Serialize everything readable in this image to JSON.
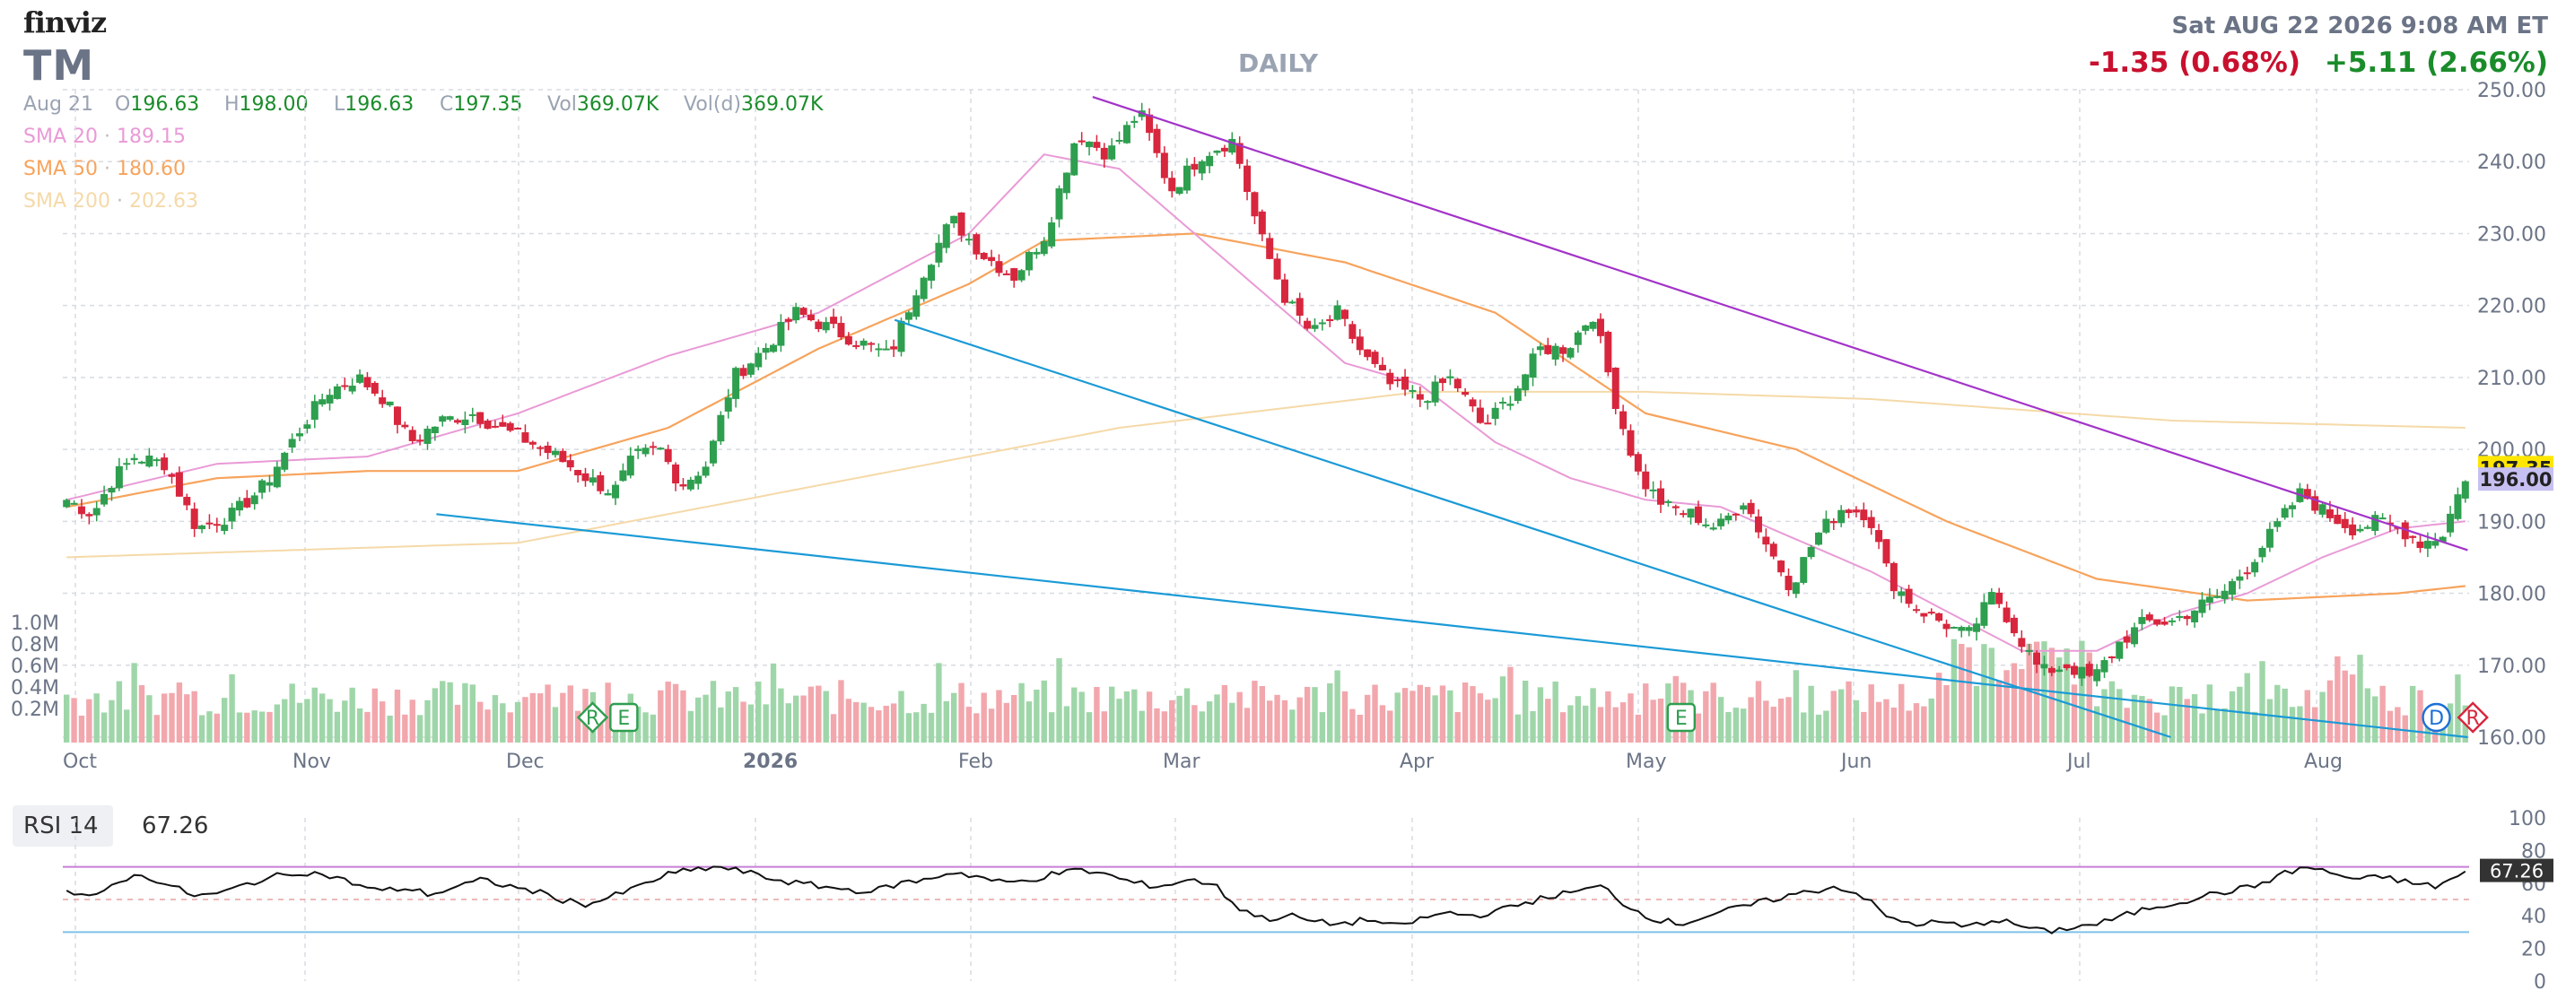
{
  "header": {
    "logo": "finviz",
    "ticker": "TM",
    "timeframe": "DAILY",
    "datetime": "Sat AUG 22 2026 9:08 AM ET",
    "change_day": "-1.35 (0.68%)",
    "change_premarket": "+5.11 (2.66%)"
  },
  "ohlc": {
    "date": "Aug 21",
    "open_label": "O",
    "open": "196.63",
    "high_label": "H",
    "high": "198.00",
    "low_label": "L",
    "low": "196.63",
    "close_label": "C",
    "close": "197.35",
    "vol_label": "Vol",
    "vol": "369.07K",
    "vold_label": "Vol(d)",
    "vold": "369.07K"
  },
  "indicators": [
    {
      "label": "SMA 20",
      "value": "189.15",
      "color": "#e99ad6"
    },
    {
      "label": "SMA 50",
      "value": "180.60",
      "color": "#f7a35c"
    },
    {
      "label": "SMA 200",
      "value": "202.63",
      "color": "#f5d9a8"
    }
  ],
  "rsi": {
    "label": "RSI 14",
    "value": "67.26",
    "value_tag": "67.26"
  },
  "price_tags": {
    "last": "197.35",
    "prev": "196.00"
  },
  "colors": {
    "up": "#2e9e4f",
    "down": "#d7263d",
    "trend_purple": "#a333c8",
    "trend_blue": "#1b9ad6",
    "vol_up": "#9fd6a9",
    "vol_down": "#f2a7ad"
  },
  "event_markers": [
    {
      "letter": "R",
      "x_index": 101,
      "color": "#2e9e4f"
    },
    {
      "letter": "E",
      "x_index": 107,
      "color": "#2e9e4f"
    },
    {
      "letter": "E",
      "x_index": 310,
      "color": "#2e9e4f"
    },
    {
      "letter": "D",
      "x_index": 455,
      "color": "#1b6fd6"
    },
    {
      "letter": "R",
      "x_index": 462,
      "color": "#d7263d"
    },
    {
      "letter": "E",
      "x_index": 630,
      "color": "#2e9e4f"
    },
    {
      "letter": "E",
      "x_index": 794,
      "color": "#2e9e4f"
    }
  ],
  "chart_data": [
    {
      "type": "candlestick",
      "title": "TM",
      "x_ticks": [
        "Oct",
        "Nov",
        "Dec",
        "2026",
        "Feb",
        "Mar",
        "Apr",
        "May",
        "Jun",
        "Jul",
        "Aug"
      ],
      "y_ticks": [
        "250.00",
        "240.00",
        "230.00",
        "220.00",
        "210.00",
        "200.00",
        "190.00",
        "180.00",
        "170.00",
        "160.00"
      ],
      "ylim": [
        160,
        250
      ],
      "volume_ticks": [
        "1.0M",
        "0.8M",
        "0.6M",
        "0.4M",
        "0.2M"
      ],
      "close_anchors": [
        [
          0,
          193
        ],
        [
          5,
          191
        ],
        [
          9,
          196
        ],
        [
          13,
          199
        ],
        [
          19,
          198
        ],
        [
          25,
          189
        ],
        [
          32,
          191
        ],
        [
          38,
          195
        ],
        [
          45,
          203
        ],
        [
          50,
          208
        ],
        [
          56,
          210
        ],
        [
          61,
          207
        ],
        [
          66,
          201
        ],
        [
          72,
          204
        ],
        [
          78,
          205
        ],
        [
          83,
          203
        ],
        [
          89,
          201
        ],
        [
          94,
          199
        ],
        [
          100,
          196
        ],
        [
          105,
          194
        ],
        [
          109,
          199
        ],
        [
          114,
          200
        ],
        [
          118,
          195
        ],
        [
          123,
          198
        ],
        [
          128,
          210
        ],
        [
          134,
          214
        ],
        [
          140,
          219
        ],
        [
          146,
          217
        ],
        [
          152,
          215
        ],
        [
          158,
          213
        ],
        [
          164,
          224
        ],
        [
          170,
          232
        ],
        [
          176,
          227
        ],
        [
          182,
          224
        ],
        [
          188,
          230
        ],
        [
          194,
          244
        ],
        [
          200,
          241
        ],
        [
          206,
          247
        ],
        [
          212,
          236
        ],
        [
          218,
          241
        ],
        [
          224,
          243
        ],
        [
          229,
          230
        ],
        [
          234,
          221
        ],
        [
          239,
          216
        ],
        [
          244,
          219
        ],
        [
          249,
          213
        ],
        [
          254,
          209
        ],
        [
          260,
          207
        ],
        [
          266,
          210
        ],
        [
          272,
          203
        ],
        [
          278,
          208
        ],
        [
          283,
          214
        ],
        [
          288,
          214
        ],
        [
          293,
          219
        ],
        [
          298,
          205
        ],
        [
          302,
          196
        ],
        [
          307,
          192
        ],
        [
          312,
          191
        ],
        [
          317,
          189
        ],
        [
          322,
          193
        ],
        [
          327,
          186
        ],
        [
          331,
          181
        ],
        [
          336,
          188
        ],
        [
          341,
          192
        ],
        [
          346,
          191
        ],
        [
          350,
          182
        ],
        [
          355,
          178
        ],
        [
          360,
          176
        ],
        [
          365,
          174
        ],
        [
          370,
          180
        ],
        [
          374,
          175
        ],
        [
          379,
          169
        ],
        [
          384,
          170
        ],
        [
          389,
          168
        ],
        [
          394,
          173
        ],
        [
          399,
          176
        ],
        [
          404,
          176
        ],
        [
          409,
          178
        ],
        [
          414,
          180
        ],
        [
          419,
          184
        ],
        [
          424,
          189
        ],
        [
          429,
          194
        ],
        [
          434,
          191
        ],
        [
          439,
          189
        ],
        [
          444,
          190
        ],
        [
          448,
          189
        ],
        [
          452,
          187
        ],
        [
          456,
          188
        ],
        [
          461,
          197
        ]
      ],
      "n_days": 462,
      "sma20": [
        [
          0,
          193
        ],
        [
          20,
          198
        ],
        [
          40,
          199
        ],
        [
          60,
          205
        ],
        [
          80,
          213
        ],
        [
          100,
          219
        ],
        [
          120,
          230
        ],
        [
          130,
          241
        ],
        [
          140,
          239
        ],
        [
          150,
          230
        ],
        [
          160,
          221
        ],
        [
          170,
          212
        ],
        [
          180,
          209
        ],
        [
          190,
          201
        ],
        [
          200,
          196
        ],
        [
          210,
          193
        ],
        [
          220,
          192
        ],
        [
          240,
          183
        ],
        [
          260,
          172
        ],
        [
          270,
          172
        ],
        [
          280,
          177
        ],
        [
          290,
          180
        ],
        [
          300,
          185
        ],
        [
          310,
          189
        ],
        [
          319,
          190
        ]
      ],
      "sma50": [
        [
          0,
          192
        ],
        [
          20,
          196
        ],
        [
          40,
          197
        ],
        [
          60,
          197
        ],
        [
          80,
          203
        ],
        [
          100,
          214
        ],
        [
          120,
          223
        ],
        [
          130,
          229
        ],
        [
          150,
          230
        ],
        [
          170,
          226
        ],
        [
          190,
          219
        ],
        [
          210,
          205
        ],
        [
          230,
          200
        ],
        [
          250,
          190
        ],
        [
          270,
          182
        ],
        [
          290,
          179
        ],
        [
          310,
          180
        ],
        [
          319,
          181
        ]
      ],
      "sma200": [
        [
          0,
          185
        ],
        [
          60,
          187
        ],
        [
          100,
          195
        ],
        [
          140,
          203
        ],
        [
          180,
          208
        ],
        [
          210,
          208
        ],
        [
          240,
          207
        ],
        [
          280,
          204
        ],
        [
          319,
          203
        ]
      ],
      "trendlines": [
        {
          "color": "purple",
          "from": [
            197,
            249
          ],
          "to": [
            461,
            186
          ]
        },
        {
          "color": "blue",
          "from": [
            159,
            218
          ],
          "to": [
            404,
            160
          ]
        },
        {
          "color": "blue",
          "from": [
            71,
            191
          ],
          "to": [
            461,
            160
          ]
        }
      ],
      "rsi": {
        "ylim": [
          0,
          100
        ],
        "y_ticks": [
          "100",
          "80",
          "60",
          "40",
          "20",
          "0"
        ],
        "overbought": 70,
        "oversold": 30,
        "anchors": [
          [
            0,
            55
          ],
          [
            5,
            50
          ],
          [
            10,
            62
          ],
          [
            15,
            65
          ],
          [
            20,
            58
          ],
          [
            25,
            52
          ],
          [
            30,
            54
          ],
          [
            35,
            60
          ],
          [
            40,
            64
          ],
          [
            45,
            67
          ],
          [
            50,
            65
          ],
          [
            55,
            60
          ],
          [
            60,
            55
          ],
          [
            65,
            57
          ],
          [
            70,
            53
          ],
          [
            75,
            58
          ],
          [
            80,
            62
          ],
          [
            85,
            58
          ],
          [
            90,
            55
          ],
          [
            95,
            50
          ],
          [
            100,
            47
          ],
          [
            105,
            52
          ],
          [
            110,
            58
          ],
          [
            115,
            65
          ],
          [
            120,
            68
          ],
          [
            125,
            70
          ],
          [
            130,
            67
          ],
          [
            135,
            63
          ],
          [
            140,
            60
          ],
          [
            145,
            58
          ],
          [
            150,
            56
          ],
          [
            155,
            55
          ],
          [
            160,
            60
          ],
          [
            165,
            62
          ],
          [
            170,
            67
          ],
          [
            175,
            64
          ],
          [
            180,
            60
          ],
          [
            185,
            62
          ],
          [
            190,
            66
          ],
          [
            195,
            68
          ],
          [
            200,
            65
          ],
          [
            205,
            60
          ],
          [
            210,
            58
          ],
          [
            215,
            62
          ],
          [
            220,
            60
          ],
          [
            225,
            45
          ],
          [
            230,
            38
          ],
          [
            235,
            40
          ],
          [
            240,
            36
          ],
          [
            245,
            35
          ],
          [
            250,
            38
          ],
          [
            255,
            33
          ],
          [
            260,
            38
          ],
          [
            265,
            42
          ],
          [
            270,
            40
          ],
          [
            275,
            43
          ],
          [
            280,
            48
          ],
          [
            285,
            52
          ],
          [
            290,
            55
          ],
          [
            295,
            58
          ],
          [
            300,
            45
          ],
          [
            305,
            38
          ],
          [
            310,
            35
          ],
          [
            315,
            40
          ],
          [
            320,
            44
          ],
          [
            325,
            48
          ],
          [
            330,
            52
          ],
          [
            335,
            55
          ],
          [
            340,
            58
          ],
          [
            345,
            52
          ],
          [
            350,
            38
          ],
          [
            355,
            35
          ],
          [
            360,
            36
          ],
          [
            365,
            33
          ],
          [
            370,
            38
          ],
          [
            375,
            34
          ],
          [
            380,
            30
          ],
          [
            385,
            33
          ],
          [
            390,
            35
          ],
          [
            395,
            40
          ],
          [
            400,
            45
          ],
          [
            405,
            48
          ],
          [
            410,
            52
          ],
          [
            415,
            55
          ],
          [
            420,
            58
          ],
          [
            425,
            65
          ],
          [
            430,
            70
          ],
          [
            435,
            66
          ],
          [
            440,
            62
          ],
          [
            445,
            64
          ],
          [
            450,
            60
          ],
          [
            455,
            58
          ],
          [
            461,
            67
          ]
        ]
      },
      "volume_shape": "varied around 0.1-0.4M with spikes to ~0.7M in mid-April and late July"
    }
  ]
}
